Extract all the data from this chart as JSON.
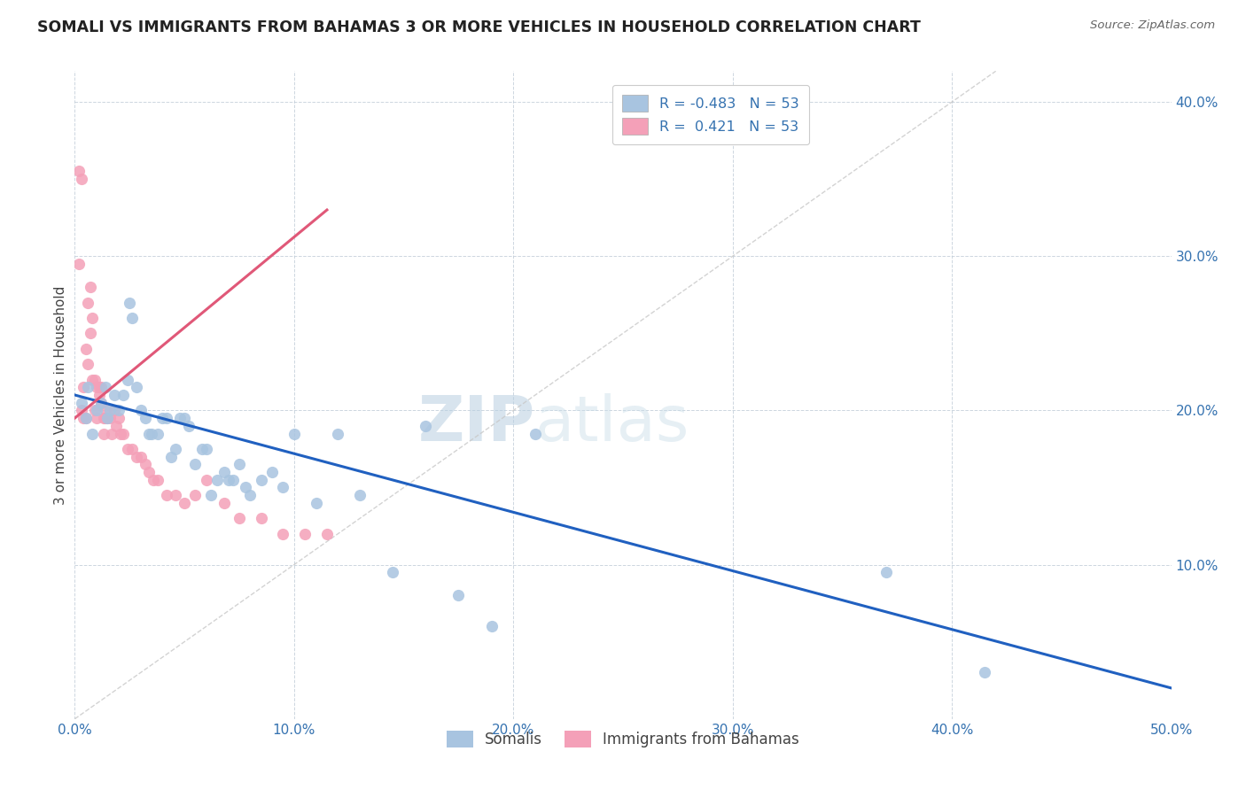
{
  "title": "SOMALI VS IMMIGRANTS FROM BAHAMAS 3 OR MORE VEHICLES IN HOUSEHOLD CORRELATION CHART",
  "source": "Source: ZipAtlas.com",
  "ylabel": "3 or more Vehicles in Household",
  "xlim": [
    0.0,
    0.5
  ],
  "ylim": [
    0.0,
    0.42
  ],
  "xticks": [
    0.0,
    0.1,
    0.2,
    0.3,
    0.4,
    0.5
  ],
  "xticklabels": [
    "0.0%",
    "10.0%",
    "20.0%",
    "30.0%",
    "40.0%",
    "50.0%"
  ],
  "yticks": [
    0.0,
    0.1,
    0.2,
    0.3,
    0.4
  ],
  "yticklabels": [
    "",
    "10.0%",
    "20.0%",
    "30.0%",
    "40.0%"
  ],
  "legend_r_somali": "-0.483",
  "legend_n_somali": "53",
  "legend_r_bahamas": " 0.421",
  "legend_n_bahamas": "53",
  "somali_color": "#a8c4e0",
  "bahamas_color": "#f4a0b8",
  "somali_line_color": "#2060c0",
  "bahamas_line_color": "#e05878",
  "diagonal_color": "#c8c8c8",
  "watermark_zip": "ZIP",
  "watermark_atlas": "atlas",
  "somali_x": [
    0.003,
    0.005,
    0.006,
    0.008,
    0.01,
    0.012,
    0.014,
    0.015,
    0.016,
    0.018,
    0.02,
    0.022,
    0.024,
    0.025,
    0.026,
    0.028,
    0.03,
    0.032,
    0.034,
    0.035,
    0.038,
    0.04,
    0.042,
    0.044,
    0.046,
    0.048,
    0.05,
    0.052,
    0.055,
    0.058,
    0.06,
    0.062,
    0.065,
    0.068,
    0.07,
    0.072,
    0.075,
    0.078,
    0.08,
    0.085,
    0.09,
    0.095,
    0.1,
    0.11,
    0.12,
    0.13,
    0.145,
    0.16,
    0.175,
    0.19,
    0.21,
    0.37,
    0.415
  ],
  "somali_y": [
    0.205,
    0.195,
    0.215,
    0.185,
    0.2,
    0.205,
    0.215,
    0.195,
    0.2,
    0.21,
    0.2,
    0.21,
    0.22,
    0.27,
    0.26,
    0.215,
    0.2,
    0.195,
    0.185,
    0.185,
    0.185,
    0.195,
    0.195,
    0.17,
    0.175,
    0.195,
    0.195,
    0.19,
    0.165,
    0.175,
    0.175,
    0.145,
    0.155,
    0.16,
    0.155,
    0.155,
    0.165,
    0.15,
    0.145,
    0.155,
    0.16,
    0.15,
    0.185,
    0.14,
    0.185,
    0.145,
    0.095,
    0.19,
    0.08,
    0.06,
    0.185,
    0.095,
    0.03
  ],
  "bahamas_x": [
    0.002,
    0.003,
    0.004,
    0.004,
    0.005,
    0.005,
    0.006,
    0.006,
    0.007,
    0.007,
    0.008,
    0.008,
    0.009,
    0.009,
    0.01,
    0.01,
    0.011,
    0.011,
    0.012,
    0.012,
    0.013,
    0.013,
    0.014,
    0.014,
    0.015,
    0.016,
    0.017,
    0.018,
    0.019,
    0.02,
    0.021,
    0.022,
    0.024,
    0.026,
    0.028,
    0.03,
    0.032,
    0.034,
    0.036,
    0.038,
    0.042,
    0.046,
    0.05,
    0.055,
    0.06,
    0.068,
    0.075,
    0.085,
    0.095,
    0.105,
    0.115,
    0.002,
    0.003
  ],
  "bahamas_y": [
    0.295,
    0.2,
    0.195,
    0.215,
    0.24,
    0.195,
    0.27,
    0.23,
    0.28,
    0.25,
    0.26,
    0.22,
    0.22,
    0.2,
    0.215,
    0.195,
    0.215,
    0.21,
    0.205,
    0.215,
    0.195,
    0.185,
    0.195,
    0.2,
    0.195,
    0.195,
    0.185,
    0.2,
    0.19,
    0.195,
    0.185,
    0.185,
    0.175,
    0.175,
    0.17,
    0.17,
    0.165,
    0.16,
    0.155,
    0.155,
    0.145,
    0.145,
    0.14,
    0.145,
    0.155,
    0.14,
    0.13,
    0.13,
    0.12,
    0.12,
    0.12,
    0.355,
    0.35
  ],
  "somali_line_x": [
    0.0,
    0.5
  ],
  "somali_line_y": [
    0.21,
    0.02
  ],
  "bahamas_line_x": [
    0.0,
    0.115
  ],
  "bahamas_line_y": [
    0.195,
    0.33
  ]
}
